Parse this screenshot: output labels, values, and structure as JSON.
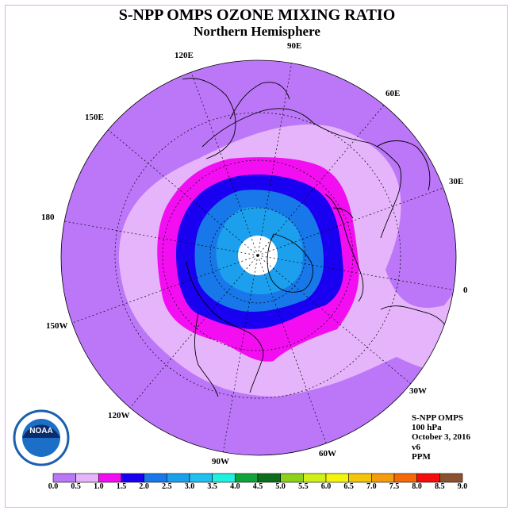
{
  "title": "S-NPP OMPS OZONE MIXING RATIO",
  "subtitle": "Northern Hemisphere",
  "longitude_labels": {
    "e90": "90E",
    "e60": "60E",
    "e30": "30E",
    "zero": "0",
    "w30": "30W",
    "w60": "60W",
    "w90": "90W",
    "w120": "120W",
    "w150": "150W",
    "d180": "180",
    "e150": "150E",
    "e120": "120E"
  },
  "info": {
    "instrument": "S-NPP OMPS",
    "level": "100 hPa",
    "date": "October 3, 2016",
    "version": "v6",
    "units": "PPM"
  },
  "colorbar": {
    "ticks": [
      "0.0",
      "0.5",
      "1.0",
      "1.5",
      "2.0",
      "2.5",
      "3.0",
      "3.5",
      "4.0",
      "4.5",
      "5.0",
      "5.5",
      "6.0",
      "6.5",
      "7.0",
      "7.5",
      "8.0",
      "8.5",
      "9.0"
    ],
    "colors": [
      "#bb77f7",
      "#e6b4fb",
      "#f20ef0",
      "#1a00f0",
      "#1878ea",
      "#1ca0ee",
      "#20c0f0",
      "#20f0e0",
      "#11a33b",
      "#0c6e1d",
      "#8ed11a",
      "#d0f018",
      "#f5f50c",
      "#f5c50c",
      "#f59c0c",
      "#f5680c",
      "#f50c0c",
      "#8b5230"
    ]
  },
  "map_colors": {
    "disc": "#bb77f7",
    "band_0_5": "#e6b4fb",
    "band_1_0": "#f20ef0",
    "band_1_5": "#1a00f0",
    "band_2_0": "#1878ea",
    "band_2_5": "#1ca0ee",
    "polar_cap": "#ffffff"
  },
  "logo": {
    "text": "NOAA"
  }
}
